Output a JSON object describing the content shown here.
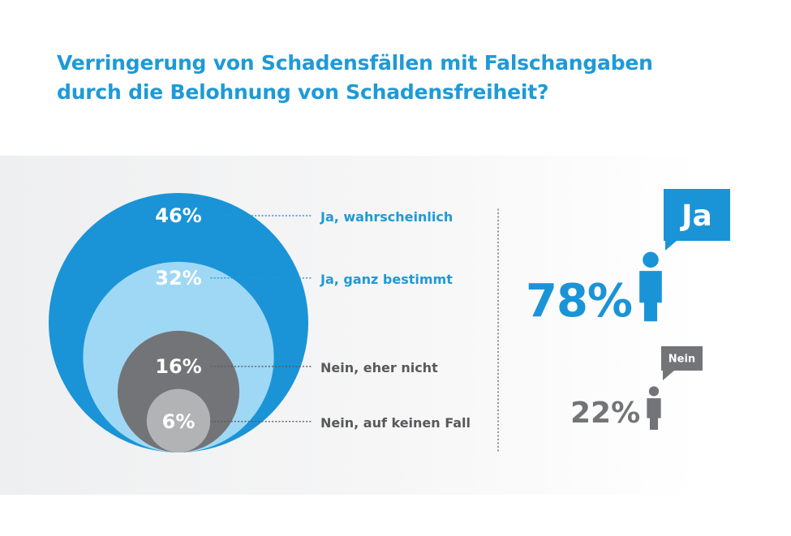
{
  "title": {
    "line1": "Verringerung von Schadensfällen mit Falschangaben",
    "line2": "durch die Belohnung von Schadensfreiheit?"
  },
  "colors": {
    "title": "#1e9ad6",
    "dark_blue": "#1a94d6",
    "light_blue": "#9fd8f5",
    "dark_grey": "#737477",
    "light_grey": "#b2b3b5",
    "grey_text": "#58595b"
  },
  "chart_data": [
    {
      "type": "nested-circles",
      "categories": [
        "Ja, wahrscheinlich",
        "Ja, ganz bestimmt",
        "Nein, eher nicht",
        "Nein, auf keinen Fall"
      ],
      "values": [
        46,
        32,
        16,
        6
      ],
      "labels": [
        "46%",
        "32%",
        "16%",
        "6%"
      ],
      "colors": [
        "#1a94d6",
        "#9fd8f5",
        "#737477",
        "#b2b3b5"
      ],
      "legend_colors": [
        "#1e9ad6",
        "#1e9ad6",
        "#58595b",
        "#58595b"
      ],
      "legend": "right"
    },
    {
      "type": "summary",
      "categories": [
        "Ja",
        "Nein"
      ],
      "values": [
        78,
        22
      ],
      "labels": [
        "78%",
        "22%"
      ],
      "colors": [
        "#1a94d6",
        "#737477"
      ],
      "bubbles": [
        "Ja",
        "Nein"
      ]
    }
  ]
}
